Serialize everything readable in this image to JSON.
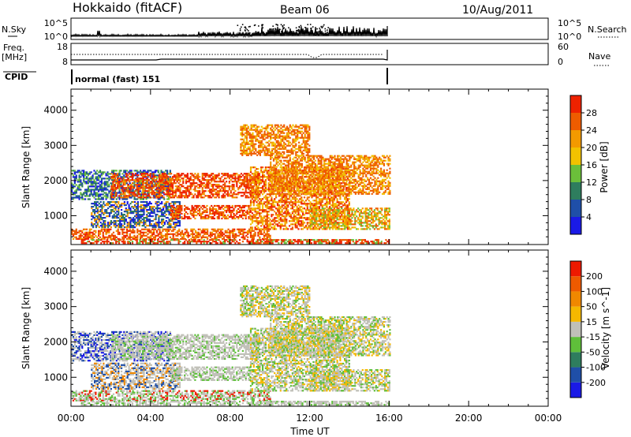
{
  "header": {
    "station": "Hokkaido (fitACF)",
    "beam": "Beam 06",
    "date": "10/Aug/2011"
  },
  "strip_labels": {
    "nsky": "N.Sky",
    "nsky_ticks": [
      "10^5",
      "10^0"
    ],
    "nsearch": "N.Search",
    "freq_line1": "Freq.",
    "freq_line2": "[MHz]",
    "freq_ticks": [
      "18",
      "8"
    ],
    "nave_ticks": [
      "60",
      "0"
    ],
    "nave": "Nave",
    "cpid": "CPID",
    "cpid_text": "normal (fast) 151"
  },
  "chart_data": [
    {
      "type": "heatmap",
      "ylabel": "Slant Range [km]",
      "y_ticks": [
        "1000",
        "2000",
        "3000",
        "4000"
      ],
      "colorbar_label": "Power [dB]",
      "colorbar_ticks": [
        "4",
        "8",
        "12",
        "16",
        "20",
        "24",
        "28"
      ],
      "colors": [
        "#1a1ae6",
        "#1f4fa8",
        "#2e7d5e",
        "#6bbf3a",
        "#f2c200",
        "#f39a00",
        "#ee5c00",
        "#ee2200"
      ]
    },
    {
      "type": "heatmap",
      "ylabel": "Slant Range [km]",
      "y_ticks": [
        "1000",
        "2000",
        "3000",
        "4000"
      ],
      "colorbar_label": "Velocity [m s^-1]",
      "colorbar_ticks": [
        "200",
        "100",
        "50",
        "15",
        "-15",
        "-50",
        "-100",
        "-200"
      ],
      "colors": [
        "#1a1ae6",
        "#1f4fa8",
        "#2e7d5e",
        "#5fbf3a",
        "#c0c0b8",
        "#f5b800",
        "#f08800",
        "#ee5a00",
        "#ee1a00"
      ],
      "xlabel": "Time UT",
      "x_ticks": [
        "00:00",
        "04:00",
        "08:00",
        "12:00",
        "16:00",
        "20:00",
        "00:00"
      ]
    }
  ]
}
